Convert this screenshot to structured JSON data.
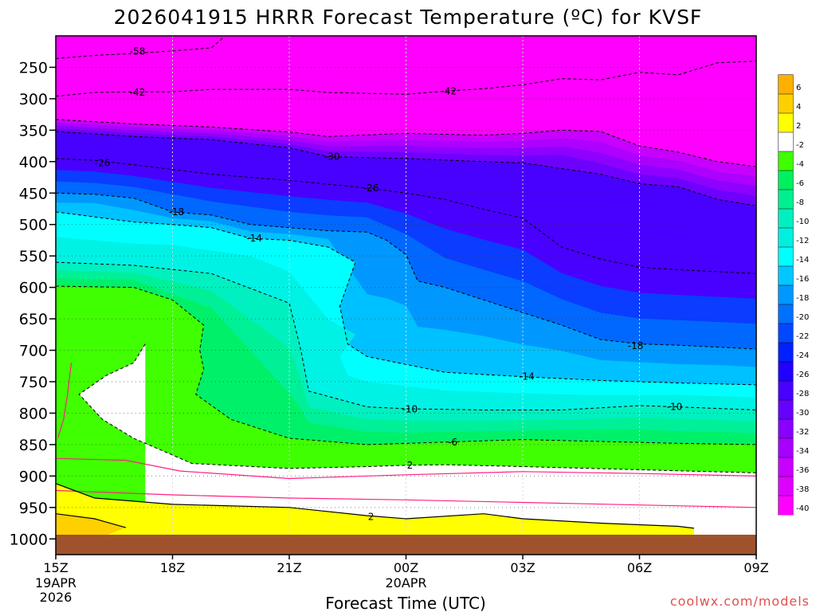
{
  "chart_data": {
    "type": "time-height-contour",
    "title": "2026041915 HRRR Forecast Temperature (ºC) for KVSF",
    "xlabel": "Forecast Time (UTC)",
    "ylabel": "",
    "credit": "coolwx.com/models",
    "x_ticks": [
      {
        "hour": 0,
        "label": "15Z",
        "sub1": "19APR",
        "sub2": "2026"
      },
      {
        "hour": 3,
        "label": "18Z",
        "sub1": "",
        "sub2": ""
      },
      {
        "hour": 6,
        "label": "21Z",
        "sub1": "",
        "sub2": ""
      },
      {
        "hour": 9,
        "label": "00Z",
        "sub1": "20APR",
        "sub2": ""
      },
      {
        "hour": 12,
        "label": "03Z",
        "sub1": "",
        "sub2": ""
      },
      {
        "hour": 15,
        "label": "06Z",
        "sub1": "",
        "sub2": ""
      },
      {
        "hour": 18,
        "label": "09Z",
        "sub1": "",
        "sub2": ""
      }
    ],
    "x_range_hours": [
      0,
      18
    ],
    "y_ticks": [
      250,
      300,
      350,
      400,
      450,
      500,
      550,
      600,
      650,
      700,
      750,
      800,
      850,
      900,
      950,
      1000
    ],
    "y_range_hpa": [
      200,
      1025
    ],
    "colorbar_levels": [
      6,
      4,
      2,
      -2,
      -4,
      -6,
      -8,
      -10,
      -12,
      -14,
      -16,
      -18,
      -20,
      -22,
      -24,
      -26,
      -28,
      -30,
      -32,
      -34,
      -36,
      -38,
      -40
    ],
    "colorbar_colors": [
      "#ffb000",
      "#ffd000",
      "#ffff00",
      "#ffffff",
      "#40ff00",
      "#00f060",
      "#00f090",
      "#00f0c0",
      "#00f0e0",
      "#00ffff",
      "#00c8ff",
      "#0098ff",
      "#0070ff",
      "#0048ff",
      "#0020ff",
      "#2000ff",
      "#4800ff",
      "#6800ff",
      "#8800ff",
      "#a800ff",
      "#c800ff",
      "#e000ff",
      "#ff00ff"
    ],
    "ground_color": "#a0522d",
    "contour_labels": [
      {
        "text": "-58",
        "hour": 2.1,
        "hpa": 225
      },
      {
        "text": "-42",
        "hour": 2.1,
        "hpa": 290
      },
      {
        "text": "-42",
        "hour": 10.1,
        "hpa": 288
      },
      {
        "text": "-30",
        "hour": 7.1,
        "hpa": 392
      },
      {
        "text": "-26",
        "hour": 1.2,
        "hpa": 402
      },
      {
        "text": "-26",
        "hour": 8.1,
        "hpa": 442
      },
      {
        "text": "-18",
        "hour": 3.1,
        "hpa": 480
      },
      {
        "text": "-14",
        "hour": 5.1,
        "hpa": 522
      },
      {
        "text": "-18",
        "hour": 14.9,
        "hpa": 693
      },
      {
        "text": "-14",
        "hour": 12.1,
        "hpa": 742
      },
      {
        "text": "-10",
        "hour": 9.1,
        "hpa": 794
      },
      {
        "text": "-10",
        "hour": 15.9,
        "hpa": 790
      },
      {
        "text": "-6",
        "hour": 10.2,
        "hpa": 846
      },
      {
        "text": "2",
        "hour": 9.1,
        "hpa": 883
      },
      {
        "text": "2",
        "hour": 8.1,
        "hpa": 965
      }
    ],
    "isotherms": [
      {
        "temp": -58,
        "points": [
          [
            0,
            236
          ],
          [
            1,
            231
          ],
          [
            2,
            228
          ],
          [
            3,
            224
          ],
          [
            4,
            219
          ],
          [
            4.3,
            203
          ]
        ]
      },
      {
        "temp": -42,
        "points": [
          [
            0,
            296
          ],
          [
            1,
            290
          ],
          [
            2,
            289
          ],
          [
            3,
            289
          ],
          [
            4,
            285
          ],
          [
            6,
            285
          ],
          [
            7,
            290
          ],
          [
            9,
            293
          ],
          [
            10,
            288
          ],
          [
            11,
            284
          ],
          [
            12,
            278
          ],
          [
            13,
            268
          ],
          [
            14,
            270
          ],
          [
            15,
            258
          ],
          [
            16,
            262
          ],
          [
            17,
            243
          ],
          [
            18,
            240
          ]
        ]
      },
      {
        "temp": -38,
        "points": [
          [
            0,
            333
          ],
          [
            2,
            340
          ],
          [
            4,
            345
          ],
          [
            6,
            353
          ],
          [
            7,
            360
          ],
          [
            9,
            355
          ],
          [
            11,
            358
          ],
          [
            12,
            355
          ],
          [
            13,
            350
          ],
          [
            14,
            352
          ],
          [
            15,
            375
          ],
          [
            16,
            385
          ],
          [
            17,
            400
          ],
          [
            18,
            408
          ]
        ]
      },
      {
        "temp": -30,
        "points": [
          [
            0,
            352
          ],
          [
            2,
            360
          ],
          [
            4,
            365
          ],
          [
            6,
            378
          ],
          [
            7,
            392
          ],
          [
            9,
            395
          ],
          [
            11,
            400
          ],
          [
            12,
            402
          ],
          [
            14,
            420
          ],
          [
            15,
            435
          ],
          [
            16,
            440
          ],
          [
            17,
            460
          ],
          [
            18,
            470
          ]
        ]
      },
      {
        "temp": -26,
        "points": [
          [
            0,
            395
          ],
          [
            1,
            398
          ],
          [
            2,
            405
          ],
          [
            4,
            420
          ],
          [
            6,
            430
          ],
          [
            7,
            436
          ],
          [
            8,
            442
          ],
          [
            9,
            450
          ],
          [
            10,
            460
          ],
          [
            11,
            476
          ],
          [
            12,
            490
          ],
          [
            13,
            536
          ],
          [
            14,
            555
          ],
          [
            15,
            568
          ],
          [
            16,
            572
          ],
          [
            17,
            575
          ],
          [
            18,
            578
          ]
        ]
      },
      {
        "temp": -18,
        "points": [
          [
            0,
            450
          ],
          [
            1,
            452
          ],
          [
            2,
            458
          ],
          [
            3,
            480
          ],
          [
            4,
            485
          ],
          [
            5,
            500
          ],
          [
            6,
            505
          ],
          [
            7,
            510
          ],
          [
            8,
            512
          ],
          [
            8.5,
            525
          ],
          [
            9,
            548
          ],
          [
            9.3,
            590
          ],
          [
            10,
            600
          ],
          [
            11,
            620
          ],
          [
            12,
            640
          ],
          [
            13,
            660
          ],
          [
            14,
            683
          ],
          [
            15,
            690
          ],
          [
            16,
            692
          ],
          [
            17,
            695
          ],
          [
            18,
            698
          ]
        ]
      },
      {
        "temp": -14,
        "points": [
          [
            0,
            480
          ],
          [
            2,
            496
          ],
          [
            3,
            500
          ],
          [
            4,
            505
          ],
          [
            5,
            522
          ],
          [
            6,
            525
          ],
          [
            7,
            536
          ],
          [
            7.7,
            560
          ],
          [
            7.3,
            630
          ],
          [
            7.5,
            690
          ],
          [
            8,
            710
          ],
          [
            10,
            735
          ],
          [
            12,
            742
          ],
          [
            14,
            748
          ],
          [
            16,
            752
          ],
          [
            18,
            755
          ]
        ]
      },
      {
        "temp": -10,
        "points": [
          [
            0,
            560
          ],
          [
            2,
            565
          ],
          [
            4,
            578
          ],
          [
            6,
            625
          ],
          [
            6.3,
            700
          ],
          [
            6.5,
            765
          ],
          [
            8,
            790
          ],
          [
            9,
            793
          ],
          [
            11,
            795
          ],
          [
            13,
            795
          ],
          [
            15,
            788
          ],
          [
            16,
            790
          ],
          [
            18,
            795
          ]
        ]
      },
      {
        "temp": -6,
        "points": [
          [
            0,
            598
          ],
          [
            2,
            600
          ],
          [
            3,
            620
          ],
          [
            3.8,
            660
          ],
          [
            3.7,
            700
          ],
          [
            3.8,
            730
          ],
          [
            3.6,
            770
          ],
          [
            4.5,
            810
          ],
          [
            6,
            840
          ],
          [
            8,
            850
          ],
          [
            10,
            846
          ],
          [
            12,
            842
          ],
          [
            14,
            845
          ],
          [
            16,
            848
          ],
          [
            18,
            850
          ]
        ]
      },
      {
        "temp": 2,
        "points": [
          [
            2.3,
            690
          ],
          [
            2,
            720
          ],
          [
            1.3,
            740
          ],
          [
            0.6,
            770
          ],
          [
            1.2,
            810
          ],
          [
            2,
            840
          ],
          [
            3.5,
            880
          ],
          [
            6,
            888
          ],
          [
            8,
            885
          ],
          [
            9,
            883
          ],
          [
            10,
            882
          ],
          [
            12,
            885
          ],
          [
            15,
            890
          ],
          [
            18,
            895
          ]
        ]
      }
    ],
    "freezing_lines": [
      {
        "color": "#ff2080",
        "points": [
          [
            0,
            872
          ],
          [
            1.8,
            875
          ],
          [
            3.2,
            892
          ],
          [
            6,
            904
          ],
          [
            9,
            898
          ],
          [
            12,
            893
          ],
          [
            15,
            896
          ],
          [
            18,
            900
          ]
        ]
      },
      {
        "color": "#ff2080",
        "points": [
          [
            0.4,
            720
          ],
          [
            0.3,
            770
          ],
          [
            0.2,
            810
          ],
          [
            0.05,
            840
          ]
        ]
      },
      {
        "color": "#ff2080",
        "points": [
          [
            0,
            923
          ],
          [
            3,
            930
          ],
          [
            6,
            935
          ],
          [
            9,
            938
          ],
          [
            12,
            942
          ],
          [
            15,
            946
          ],
          [
            18,
            950
          ]
        ]
      }
    ],
    "surface_lines": [
      {
        "color": "#000000",
        "points": [
          [
            0,
            912
          ],
          [
            1,
            935
          ],
          [
            3,
            945
          ],
          [
            6,
            950
          ],
          [
            8,
            963
          ],
          [
            9,
            968
          ],
          [
            11,
            960
          ],
          [
            12,
            968
          ],
          [
            14,
            975
          ],
          [
            16,
            980
          ],
          [
            16.4,
            983
          ]
        ]
      },
      {
        "color": "#000000",
        "points": [
          [
            0,
            960
          ],
          [
            1,
            968
          ],
          [
            1.8,
            982
          ]
        ]
      }
    ]
  }
}
